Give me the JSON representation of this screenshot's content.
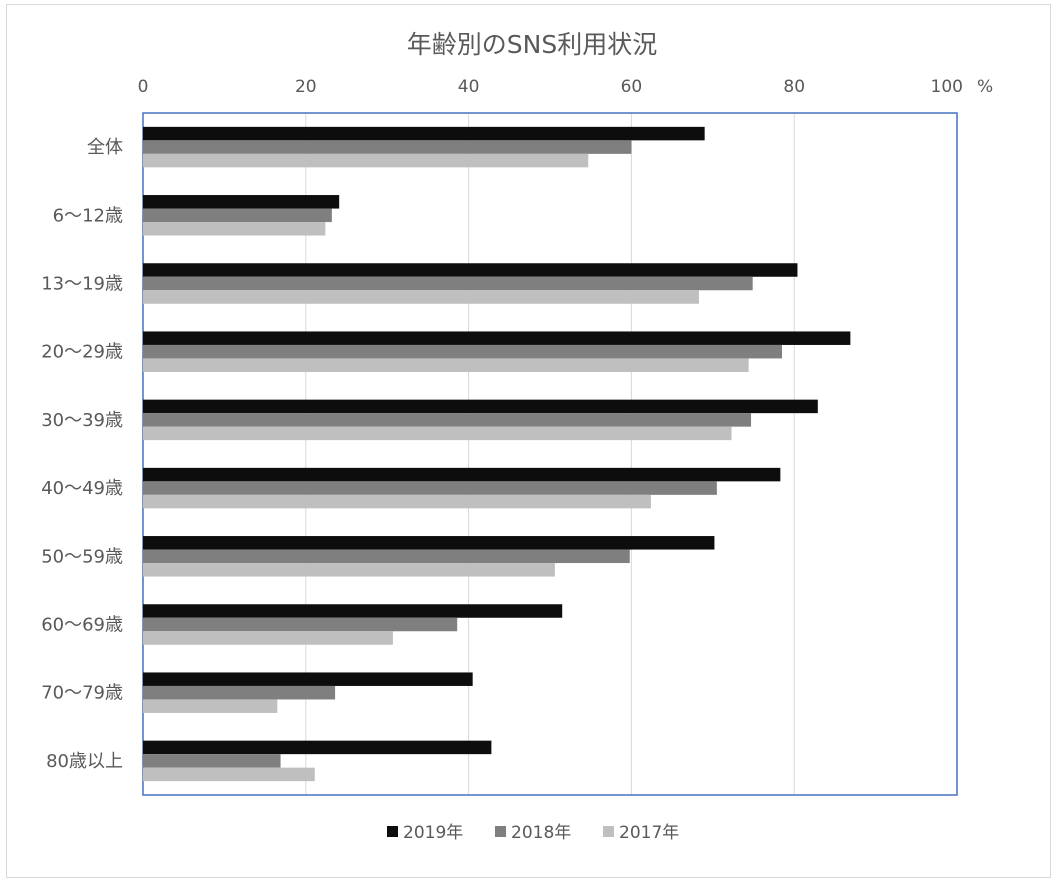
{
  "chart_data": {
    "type": "bar",
    "orientation": "horizontal",
    "title": "年齢別のSNS利用状況",
    "xlabel": "",
    "ylabel": "",
    "unit_label": "%",
    "x_ticks": [
      "0",
      "20",
      "40",
      "60",
      "80",
      "100"
    ],
    "xlim": [
      0,
      100
    ],
    "categories": [
      "全体",
      "6〜12歳",
      "13〜19歳",
      "20〜29歳",
      "30〜39歳",
      "40〜49歳",
      "50〜59歳",
      "60〜69歳",
      "70〜79歳",
      "80歳以上"
    ],
    "series": [
      {
        "name": "2019年",
        "color": "#0d0d0d",
        "values": [
          69.0,
          24.1,
          80.4,
          86.9,
          82.9,
          78.3,
          70.2,
          51.5,
          40.5,
          42.8
        ]
      },
      {
        "name": "2018年",
        "color": "#7f7f7f",
        "values": [
          60.0,
          23.2,
          74.9,
          78.5,
          74.7,
          70.5,
          59.8,
          38.6,
          23.6,
          16.9
        ]
      },
      {
        "name": "2017年",
        "color": "#bfbfbf",
        "values": [
          54.7,
          22.4,
          68.3,
          74.4,
          72.3,
          62.4,
          50.6,
          30.7,
          16.5,
          21.1
        ]
      }
    ],
    "gridlines": true,
    "legend_position": "bottom",
    "x_axis_position": "top"
  }
}
